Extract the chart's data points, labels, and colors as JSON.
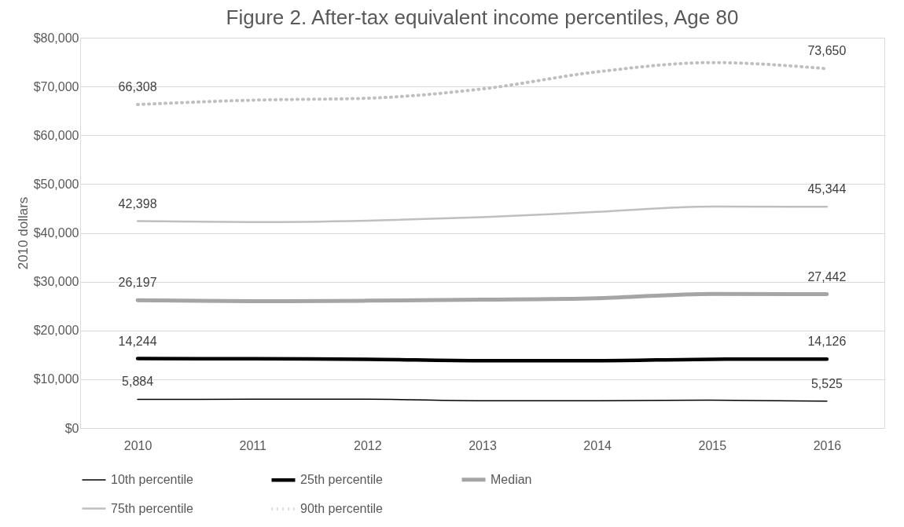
{
  "chart_data": {
    "type": "line",
    "title": "Figure 2. After-tax equivalent income percentiles, Age 80",
    "ylabel": "2010 dollars",
    "categories": [
      "2010",
      "2011",
      "2012",
      "2013",
      "2014",
      "2015",
      "2016"
    ],
    "series": [
      {
        "name": "10th percentile",
        "color": "#000000",
        "line_style": "solid",
        "values": [
          5884,
          5900,
          5900,
          5600,
          5600,
          5700,
          5525
        ],
        "value_labels": [
          "5,884",
          null,
          null,
          null,
          null,
          null,
          "5,525"
        ]
      },
      {
        "name": "25th percentile",
        "color": "#000000",
        "line_style": "solid",
        "values": [
          14244,
          14200,
          14100,
          13800,
          13800,
          14100,
          14126
        ],
        "value_labels": [
          "14,244",
          null,
          null,
          null,
          null,
          null,
          "14,126"
        ]
      },
      {
        "name": "Median",
        "color": "#a5a5a5",
        "line_style": "solid",
        "values": [
          26197,
          26000,
          26100,
          26300,
          26600,
          27500,
          27442
        ],
        "value_labels": [
          "26,197",
          null,
          null,
          null,
          null,
          null,
          "27,442"
        ]
      },
      {
        "name": "75th percentile",
        "color": "#bfbfbf",
        "line_style": "solid",
        "values": [
          42398,
          42200,
          42500,
          43200,
          44300,
          45400,
          45344
        ],
        "value_labels": [
          "42,398",
          null,
          null,
          null,
          null,
          null,
          "45,344"
        ]
      },
      {
        "name": "90th percentile",
        "color": "#bfbfbf",
        "line_style": "dotted",
        "values": [
          66308,
          67200,
          67600,
          69500,
          73000,
          74900,
          73650
        ],
        "value_labels": [
          "66,308",
          null,
          null,
          null,
          null,
          null,
          "73,650"
        ]
      }
    ],
    "ylim": [
      0,
      80000
    ],
    "yticks": [
      {
        "value": 0,
        "label": "$0"
      },
      {
        "value": 10000,
        "label": "$10,000"
      },
      {
        "value": 20000,
        "label": "$20,000"
      },
      {
        "value": 30000,
        "label": "$30,000"
      },
      {
        "value": 40000,
        "label": "$40,000"
      },
      {
        "value": 50000,
        "label": "$50,000"
      },
      {
        "value": 60000,
        "label": "$60,000"
      },
      {
        "value": 70000,
        "label": "$70,000"
      },
      {
        "value": 80000,
        "label": "$80,000"
      }
    ],
    "grid": "y",
    "legend": "bottom"
  }
}
